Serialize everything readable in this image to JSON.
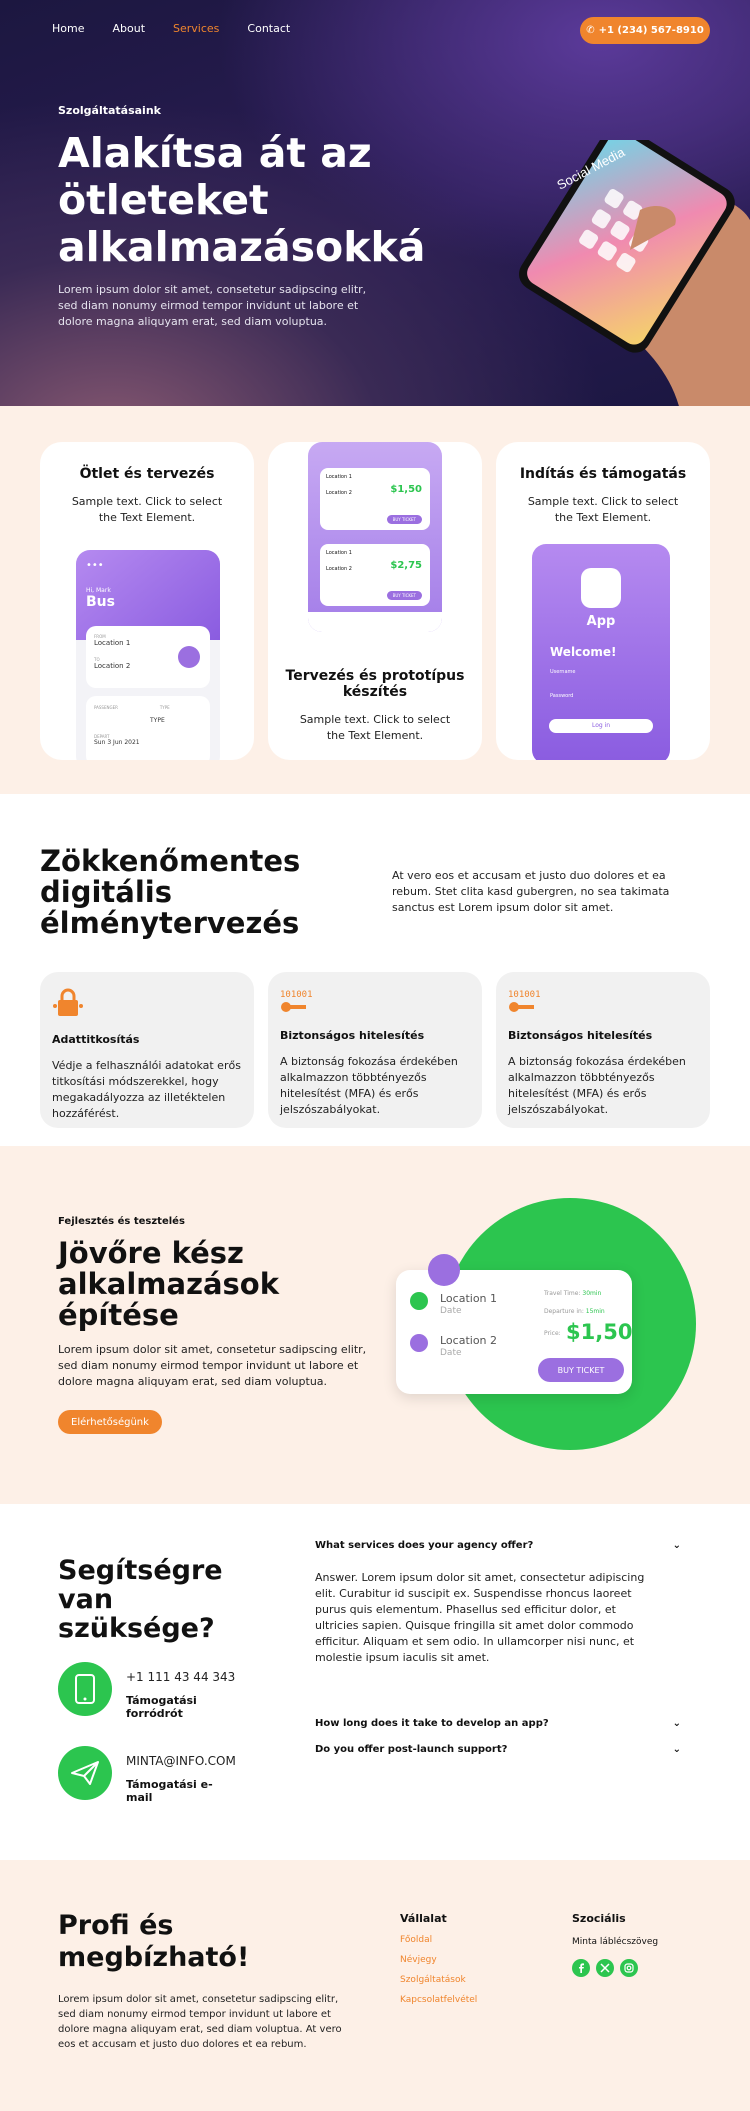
{
  "nav": {
    "items": [
      "Home",
      "About",
      "Services",
      "Contact"
    ],
    "active": "Services",
    "phone": "+1 (234) 567-8910"
  },
  "hero": {
    "kicker": "Szolgáltatásaink",
    "title": "Alakítsa át az ötleteket alkalmazásokká",
    "text": "Lorem ipsum dolor sit amet, consetetur sadipscing elitr, sed diam nonumy eirmod tempor invidunt ut labore et dolore magna aliquyam erat, sed diam voluptua.",
    "phone_screen": "Social Media"
  },
  "cards": [
    {
      "title": "Ötlet és tervezés",
      "text": "Sample text. Click to select the Text Element."
    },
    {
      "title": "Tervezés és prototípus készítés",
      "text": "Sample text. Click to select the Text Element."
    },
    {
      "title": "Indítás és támogatás",
      "text": "Sample text. Click to select the Text Element."
    }
  ],
  "mock_bus": {
    "hi": "Hi, Mark",
    "title": "Bus",
    "from_label": "FROM",
    "from": "Location 1",
    "to_label": "TO",
    "to": "Location 2",
    "passenger_label": "PASSENGER",
    "type_label": "TYPE",
    "type": "TYPE",
    "depart_label": "DEPART",
    "depart": "Sun 3 Jun 2021"
  },
  "mock_tickets": [
    {
      "from": "Location 1",
      "to": "Location 2",
      "price": "$1,50",
      "btn": "BUY TICKET"
    },
    {
      "from": "Location 1",
      "to": "Location 2",
      "price": "$2,75",
      "btn": "BUY TICKET"
    }
  ],
  "mock_app": {
    "label": "App",
    "welcome": "Welcome!",
    "user": "Username",
    "pass": "Password",
    "btn": "Log in"
  },
  "seam": {
    "title": "Zökkenőmentes digitális élménytervezés",
    "text": "At vero eos et accusam et justo duo dolores et ea rebum. Stet clita kasd gubergren, no sea takimata sanctus est Lorem ipsum dolor sit amet.",
    "features": [
      {
        "icon": "encryption-icon",
        "title": "Adattitkosítás",
        "text": "Védje a felhasználói adatokat erős titkosítási módszerekkel, hogy megakadályozza az illetéktelen hozzáférést."
      },
      {
        "icon": "key-binary-icon",
        "title": "Biztonságos hitelesítés",
        "text": "A biztonság fokozása érdekében alkalmazzon többtényezős hitelesítést (MFA) és erős jelszószabályokat."
      },
      {
        "icon": "key-binary-icon",
        "title": "Biztonságos hitelesítés",
        "text": "A biztonság fokozása érdekében alkalmazzon többtényezős hitelesítést (MFA) és erős jelszószabályokat."
      }
    ]
  },
  "future": {
    "kicker": "Fejlesztés és tesztelés",
    "title": "Jövőre kész alkalmazások építése",
    "text": "Lorem ipsum dolor sit amet, consetetur sadipscing elitr, sed diam nonumy eirmod tempor invidunt ut labore et dolore magna aliquyam erat, sed diam voluptua.",
    "button": "Elérhetőségünk",
    "ticket": {
      "loc1": "Location 1",
      "loc2": "Location 2",
      "date": "Date",
      "travel_label": "Travel Time:",
      "travel": "30min",
      "depart_label": "Departure in:",
      "depart": "15min",
      "price_label": "Price:",
      "price": "$1,50",
      "btn": "BUY TICKET"
    }
  },
  "help": {
    "title": "Segítségre van szüksége?",
    "phone": "+1 111 43 44 343",
    "phone_label": "Támogatási forródrót",
    "email": "MINTA@INFO.COM",
    "email_label": "Támogatási e-mail",
    "faq": [
      {
        "q": "What services does your agency offer?",
        "a": "Answer. Lorem ipsum dolor sit amet, consectetur adipiscing elit. Curabitur id suscipit ex. Suspendisse rhoncus laoreet purus quis elementum. Phasellus sed efficitur dolor, et ultricies sapien. Quisque fringilla sit amet dolor commodo efficitur. Aliquam et sem odio. In ullamcorper nisi nunc, et molestie ipsum iaculis sit amet."
      },
      {
        "q": "How long does it take to develop an app?"
      },
      {
        "q": "Do you offer post-launch support?"
      }
    ]
  },
  "footer": {
    "title": "Profi és megbízható!",
    "text": "Lorem ipsum dolor sit amet, consetetur sadipscing elitr, sed diam nonumy eirmod tempor invidunt ut labore et dolore magna aliquyam erat, sed diam voluptua. At vero eos et accusam et justo duo dolores et ea rebum.",
    "col1_title": "Vállalat",
    "col1_links": [
      "Főoldal",
      "Névjegy",
      "Szolgáltatások",
      "Kapcsolatfelvétel"
    ],
    "col2_title": "Szociális",
    "col2_text": "Minta lábléc­szöveg",
    "social": [
      "facebook-icon",
      "x-icon",
      "instagram-icon"
    ]
  },
  "colors": {
    "accent": "#f0852d",
    "green": "#2cc54f",
    "purple": "#9b6fe0",
    "cream": "#fdf0e7"
  }
}
